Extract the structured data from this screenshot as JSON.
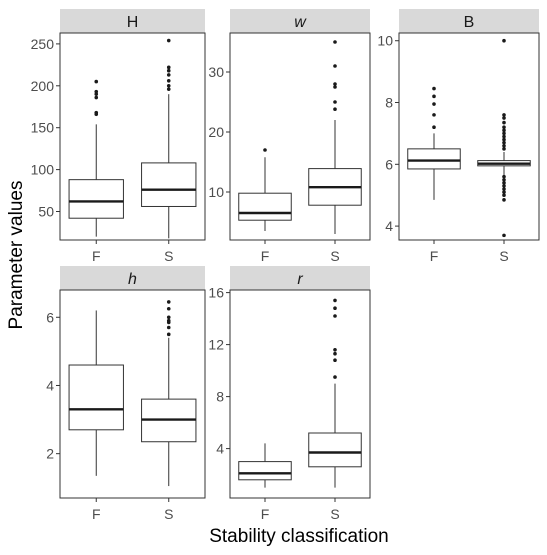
{
  "chart_data": {
    "type": "boxplot",
    "xlabel": "Stability classification",
    "ylabel": "Parameter values",
    "colors": {
      "strip": "#d9d9d9",
      "box_fill": "#ffffff",
      "stroke": "#333333",
      "median": "#1a1a1a"
    },
    "panels": [
      {
        "title": "H",
        "italic": false,
        "ylim": [
          16,
          263
        ],
        "yticks": [
          50,
          100,
          150,
          200,
          250
        ],
        "categories": [
          "F",
          "S"
        ],
        "boxes": [
          {
            "category": "F",
            "whisker_low": 20,
            "q1": 42,
            "median": 62,
            "q3": 88,
            "whisker_high": 154,
            "outliers": [
              166,
              168,
              186,
              190,
              193,
              205
            ]
          },
          {
            "category": "S",
            "whisker_low": 18,
            "q1": 56,
            "median": 76,
            "q3": 108,
            "whisker_high": 190,
            "outliers": [
              196,
              200,
              206,
              213,
              218,
              222,
              254
            ]
          }
        ]
      },
      {
        "title": "w",
        "italic": true,
        "ylim": [
          2,
          36.5
        ],
        "yticks": [
          10,
          20,
          30
        ],
        "categories": [
          "F",
          "S"
        ],
        "boxes": [
          {
            "category": "F",
            "whisker_low": 3.5,
            "q1": 5.3,
            "median": 6.5,
            "q3": 9.8,
            "whisker_high": 15.8,
            "outliers": [
              17
            ]
          },
          {
            "category": "S",
            "whisker_low": 3.0,
            "q1": 7.8,
            "median": 10.8,
            "q3": 13.9,
            "whisker_high": 22,
            "outliers": [
              23.8,
              25,
              27.5,
              28,
              31,
              35
            ]
          }
        ]
      },
      {
        "title": "B",
        "italic": false,
        "ylim": [
          3.55,
          10.25
        ],
        "yticks": [
          4,
          6,
          8,
          10
        ],
        "categories": [
          "F",
          "S"
        ],
        "boxes": [
          {
            "category": "F",
            "whisker_low": 4.85,
            "q1": 5.85,
            "median": 6.12,
            "q3": 6.5,
            "whisker_high": 7.0,
            "outliers": [
              7.2,
              7.6,
              7.95,
              8.2,
              8.45
            ]
          },
          {
            "category": "S",
            "whisker_low": 5.65,
            "q1": 5.95,
            "median": 6.02,
            "q3": 6.12,
            "whisker_high": 6.4,
            "outliers": [
              3.7,
              4.85,
              5.0,
              5.1,
              5.2,
              5.3,
              5.4,
              5.5,
              5.6,
              6.5,
              6.6,
              6.7,
              6.8,
              6.9,
              7.0,
              7.1,
              7.2,
              7.35,
              7.5,
              7.6,
              10.0
            ]
          }
        ]
      },
      {
        "title": "h",
        "italic": true,
        "ylim": [
          0.7,
          6.8
        ],
        "yticks": [
          2,
          4,
          6
        ],
        "categories": [
          "F",
          "S"
        ],
        "boxes": [
          {
            "category": "F",
            "whisker_low": 1.35,
            "q1": 2.7,
            "median": 3.3,
            "q3": 4.6,
            "whisker_high": 6.2,
            "outliers": []
          },
          {
            "category": "S",
            "whisker_low": 1.05,
            "q1": 2.35,
            "median": 3.0,
            "q3": 3.6,
            "whisker_high": 5.4,
            "outliers": [
              5.5,
              5.7,
              5.85,
              5.9,
              6.0,
              6.25,
              6.45
            ]
          }
        ]
      },
      {
        "title": "r",
        "italic": true,
        "ylim": [
          0.2,
          16.2
        ],
        "yticks": [
          4,
          8,
          12,
          16
        ],
        "categories": [
          "F",
          "S"
        ],
        "boxes": [
          {
            "category": "F",
            "whisker_low": 1.0,
            "q1": 1.6,
            "median": 2.1,
            "q3": 3.0,
            "whisker_high": 4.4,
            "outliers": []
          },
          {
            "category": "S",
            "whisker_low": 1.0,
            "q1": 2.6,
            "median": 3.7,
            "q3": 5.2,
            "whisker_high": 9.0,
            "outliers": [
              9.5,
              10.8,
              11.3,
              11.6,
              14.2,
              14.8,
              15.4
            ]
          }
        ]
      }
    ]
  }
}
